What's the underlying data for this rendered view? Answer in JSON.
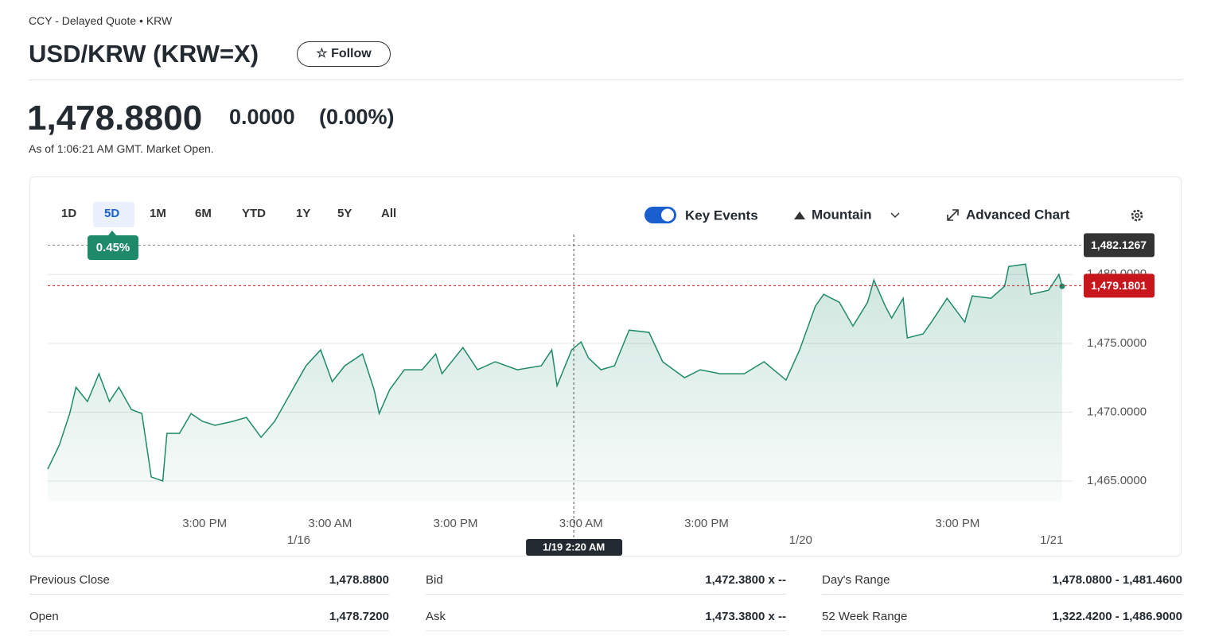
{
  "header": {
    "breadcrumb": "CCY - Delayed Quote • KRW",
    "title": "USD/KRW (KRW=X)",
    "follow": "Follow"
  },
  "quote": {
    "price": "1,478.8800",
    "change": "0.0000",
    "change_percent": "(0.00%)",
    "as_of": "As of 1:06:21 AM GMT. Market Open."
  },
  "chart_controls": {
    "ranges": [
      "1D",
      "5D",
      "1M",
      "6M",
      "YTD",
      "1Y",
      "5Y",
      "All"
    ],
    "selected_range": 1,
    "key_events": "Key Events",
    "chart_style": "Mountain",
    "advanced_chart": "Advanced Chart"
  },
  "chart_data": {
    "type": "area",
    "color": "#1f8a6a",
    "x": [
      0.0,
      1.1,
      2.1,
      2.7,
      3.8,
      4.9,
      5.9,
      6.8,
      8.0,
      9.0,
      9.9,
      11.0,
      11.4,
      12.6,
      13.7,
      14.8,
      16.0,
      17.7,
      19.0,
      20.4,
      21.7,
      23.2,
      24.7,
      26.1,
      27.2,
      28.4,
      30.1,
      31.2,
      31.7,
      32.7,
      34.1,
      35.8,
      37.1,
      37.7,
      39.7,
      41.1,
      42.8,
      44.9,
      47.2,
      48.2,
      48.7,
      50.1,
      51.0,
      51.7,
      52.9,
      54.2,
      55.6,
      57.5,
      58.8,
      60.9,
      62.4,
      64.3,
      66.6,
      68.5,
      70.6,
      71.9,
      73.4,
      74.2,
      75.7,
      77.0,
      78.4,
      79.0,
      80.1,
      80.7,
      81.8,
      82.2,
      83.7,
      84.5,
      86.0,
      87.7,
      88.4,
      90.2,
      91.5,
      91.9,
      93.5,
      94.0,
      95.7,
      96.7,
      97.0
    ],
    "values": [
      1465.87,
      1467.6,
      1469.9,
      1471.81,
      1470.77,
      1472.79,
      1470.77,
      1471.81,
      1470.19,
      1469.9,
      1465.29,
      1465.0,
      1468.46,
      1468.46,
      1469.9,
      1469.33,
      1469.04,
      1469.33,
      1469.62,
      1468.17,
      1469.33,
      1471.35,
      1473.37,
      1474.52,
      1472.21,
      1473.37,
      1474.23,
      1471.64,
      1469.9,
      1471.64,
      1473.08,
      1473.08,
      1474.23,
      1472.79,
      1474.69,
      1473.08,
      1473.66,
      1473.08,
      1473.37,
      1474.52,
      1471.92,
      1474.52,
      1475.1,
      1473.94,
      1473.08,
      1473.37,
      1475.96,
      1475.79,
      1473.66,
      1472.5,
      1473.08,
      1472.79,
      1472.79,
      1473.66,
      1472.33,
      1474.52,
      1477.69,
      1478.56,
      1477.98,
      1476.25,
      1477.98,
      1479.6,
      1477.69,
      1476.83,
      1478.27,
      1475.39,
      1475.68,
      1476.54,
      1478.27,
      1476.54,
      1478.44,
      1478.27,
      1479.14,
      1480.58,
      1480.75,
      1478.56,
      1478.85,
      1480.0,
      1479.14
    ],
    "xlim": [
      0,
      98
    ],
    "xticks": [
      {
        "value": 15,
        "label": "3:00 PM"
      },
      {
        "value": 27,
        "label": "3:00 AM"
      },
      {
        "value": 39,
        "label": "3:00 PM"
      },
      {
        "value": 51,
        "label": "3:00 AM"
      },
      {
        "value": 63,
        "label": "3:00 PM"
      },
      {
        "value": 87,
        "label": "3:00 PM"
      }
    ],
    "date_ticks": [
      {
        "value": 24,
        "label": "1/16"
      },
      {
        "value": 72,
        "label": "1/20"
      },
      {
        "value": 96,
        "label": "1/21"
      }
    ],
    "ylim": [
      1463.5,
      1482.9
    ],
    "yticks": [
      {
        "value": 1465,
        "label": "1,465.0000"
      },
      {
        "value": 1470,
        "label": "1,470.0000"
      },
      {
        "value": 1475,
        "label": "1,475.0000"
      },
      {
        "value": 1480,
        "label": "1,480.0000"
      }
    ],
    "grid": true,
    "change_badge": "0.45%",
    "price_labels": [
      {
        "value": 1482.1267,
        "label": "1,482.1267"
      },
      {
        "value": 1479.1801,
        "label": "1,479.1801"
      }
    ],
    "crosshair": {
      "value": 50.3,
      "label": "1/19 2:20 AM"
    }
  },
  "stats": [
    [
      {
        "label": "Previous Close",
        "value": "1,478.8800"
      },
      {
        "label": "Bid",
        "value": "1,472.3800 x --"
      },
      {
        "label": "Day's Range",
        "value": "1,478.0800 - 1,481.4600"
      }
    ],
    [
      {
        "label": "Open",
        "value": "1,478.7200"
      },
      {
        "label": "Ask",
        "value": "1,473.3800 x --"
      },
      {
        "label": "52 Week Range",
        "value": "1,322.4200 - 1,486.9000"
      }
    ]
  ]
}
